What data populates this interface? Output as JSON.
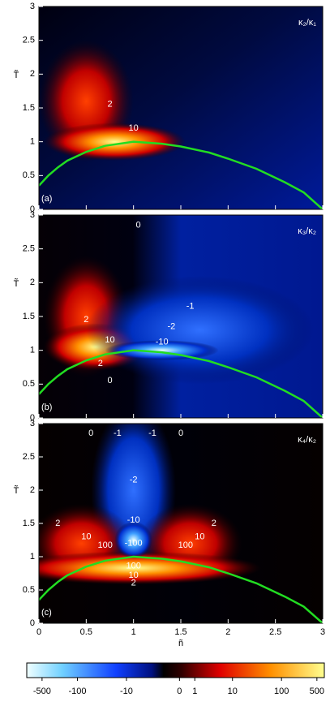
{
  "chart_data": [
    {
      "type": "heatmap",
      "title": "κ₂/κ₁",
      "panel_label": "(a)",
      "ylabel": "T̃",
      "xlim": [
        0,
        3
      ],
      "ylim": [
        0,
        3
      ],
      "xticks": [
        0,
        0.5,
        1,
        1.5,
        2,
        2.5,
        3
      ],
      "yticks": [
        0,
        0.5,
        1,
        1.5,
        2,
        2.5,
        3
      ],
      "show_xtick_labels": false,
      "series": [
        {
          "color": "#22dd22",
          "x": [
            0,
            0.1,
            0.2,
            0.3,
            0.5,
            0.7,
            1,
            1.3,
            1.5,
            1.8,
            2,
            2.3,
            2.6,
            2.8,
            3
          ],
          "values": [
            0.35,
            0.5,
            0.62,
            0.72,
            0.85,
            0.94,
            1,
            0.97,
            0.93,
            0.84,
            0.75,
            0.6,
            0.4,
            0.25,
            0
          ]
        }
      ],
      "annotations": [
        {
          "text": "2",
          "x": 0.75,
          "y": 1.55
        },
        {
          "text": "10",
          "x": 1.0,
          "y": 1.2
        }
      ]
    },
    {
      "type": "heatmap",
      "title": "κ₃/κ₂",
      "panel_label": "(b)",
      "ylabel": "T̃",
      "xlim": [
        0,
        3
      ],
      "ylim": [
        0,
        3
      ],
      "xticks": [
        0,
        0.5,
        1,
        1.5,
        2,
        2.5,
        3
      ],
      "yticks": [
        0,
        0.5,
        1,
        1.5,
        2,
        2.5,
        3
      ],
      "show_xtick_labels": false,
      "series": [
        {
          "color": "#22dd22",
          "x": [
            0,
            0.1,
            0.2,
            0.3,
            0.5,
            0.7,
            1,
            1.3,
            1.5,
            1.8,
            2,
            2.3,
            2.6,
            2.8,
            3
          ],
          "values": [
            0.35,
            0.5,
            0.62,
            0.72,
            0.85,
            0.94,
            1,
            0.97,
            0.93,
            0.84,
            0.75,
            0.6,
            0.4,
            0.25,
            0
          ]
        }
      ],
      "annotations": [
        {
          "text": "0",
          "x": 1.05,
          "y": 2.85
        },
        {
          "text": "-1",
          "x": 1.6,
          "y": 1.65
        },
        {
          "text": "-2",
          "x": 1.4,
          "y": 1.35
        },
        {
          "text": "-10",
          "x": 1.3,
          "y": 1.12
        },
        {
          "text": "2",
          "x": 0.5,
          "y": 1.45
        },
        {
          "text": "10",
          "x": 0.75,
          "y": 1.15
        },
        {
          "text": "2",
          "x": 0.65,
          "y": 0.8
        },
        {
          "text": "0",
          "x": 0.75,
          "y": 0.55
        }
      ]
    },
    {
      "type": "heatmap",
      "title": "κ₄/κ₂",
      "panel_label": "(c)",
      "ylabel": "T̃",
      "xlabel": "ñ",
      "xlim": [
        0,
        3
      ],
      "ylim": [
        0,
        3
      ],
      "xticks": [
        0,
        0.5,
        1,
        1.5,
        2,
        2.5,
        3
      ],
      "yticks": [
        0,
        0.5,
        1,
        1.5,
        2,
        2.5,
        3
      ],
      "show_xtick_labels": true,
      "series": [
        {
          "color": "#22dd22",
          "x": [
            0,
            0.1,
            0.2,
            0.3,
            0.5,
            0.7,
            1,
            1.3,
            1.5,
            1.8,
            2,
            2.3,
            2.6,
            2.8,
            3
          ],
          "values": [
            0.35,
            0.5,
            0.62,
            0.72,
            0.85,
            0.94,
            1,
            0.97,
            0.93,
            0.84,
            0.75,
            0.6,
            0.4,
            0.25,
            0
          ]
        }
      ],
      "annotations": [
        {
          "text": "0",
          "x": 0.55,
          "y": 2.85
        },
        {
          "text": "-1",
          "x": 0.83,
          "y": 2.85
        },
        {
          "text": "-1",
          "x": 1.2,
          "y": 2.85
        },
        {
          "text": "0",
          "x": 1.5,
          "y": 2.85
        },
        {
          "text": "-2",
          "x": 1.0,
          "y": 2.15
        },
        {
          "text": "-10",
          "x": 1.0,
          "y": 1.55
        },
        {
          "text": "-100",
          "x": 1.0,
          "y": 1.2
        },
        {
          "text": "2",
          "x": 0.2,
          "y": 1.5
        },
        {
          "text": "10",
          "x": 0.5,
          "y": 1.3
        },
        {
          "text": "100",
          "x": 0.7,
          "y": 1.17
        },
        {
          "text": "2",
          "x": 1.85,
          "y": 1.5
        },
        {
          "text": "10",
          "x": 1.7,
          "y": 1.3
        },
        {
          "text": "100",
          "x": 1.55,
          "y": 1.17
        },
        {
          "text": "100",
          "x": 1.0,
          "y": 0.86
        },
        {
          "text": "10",
          "x": 1.0,
          "y": 0.72
        },
        {
          "text": "2",
          "x": 1.0,
          "y": 0.6
        }
      ]
    },
    {
      "type": "colorbar",
      "xlim": [
        -1000,
        700
      ],
      "xticks": [
        -500,
        -100,
        -10,
        0,
        1,
        10,
        100,
        500
      ]
    }
  ]
}
